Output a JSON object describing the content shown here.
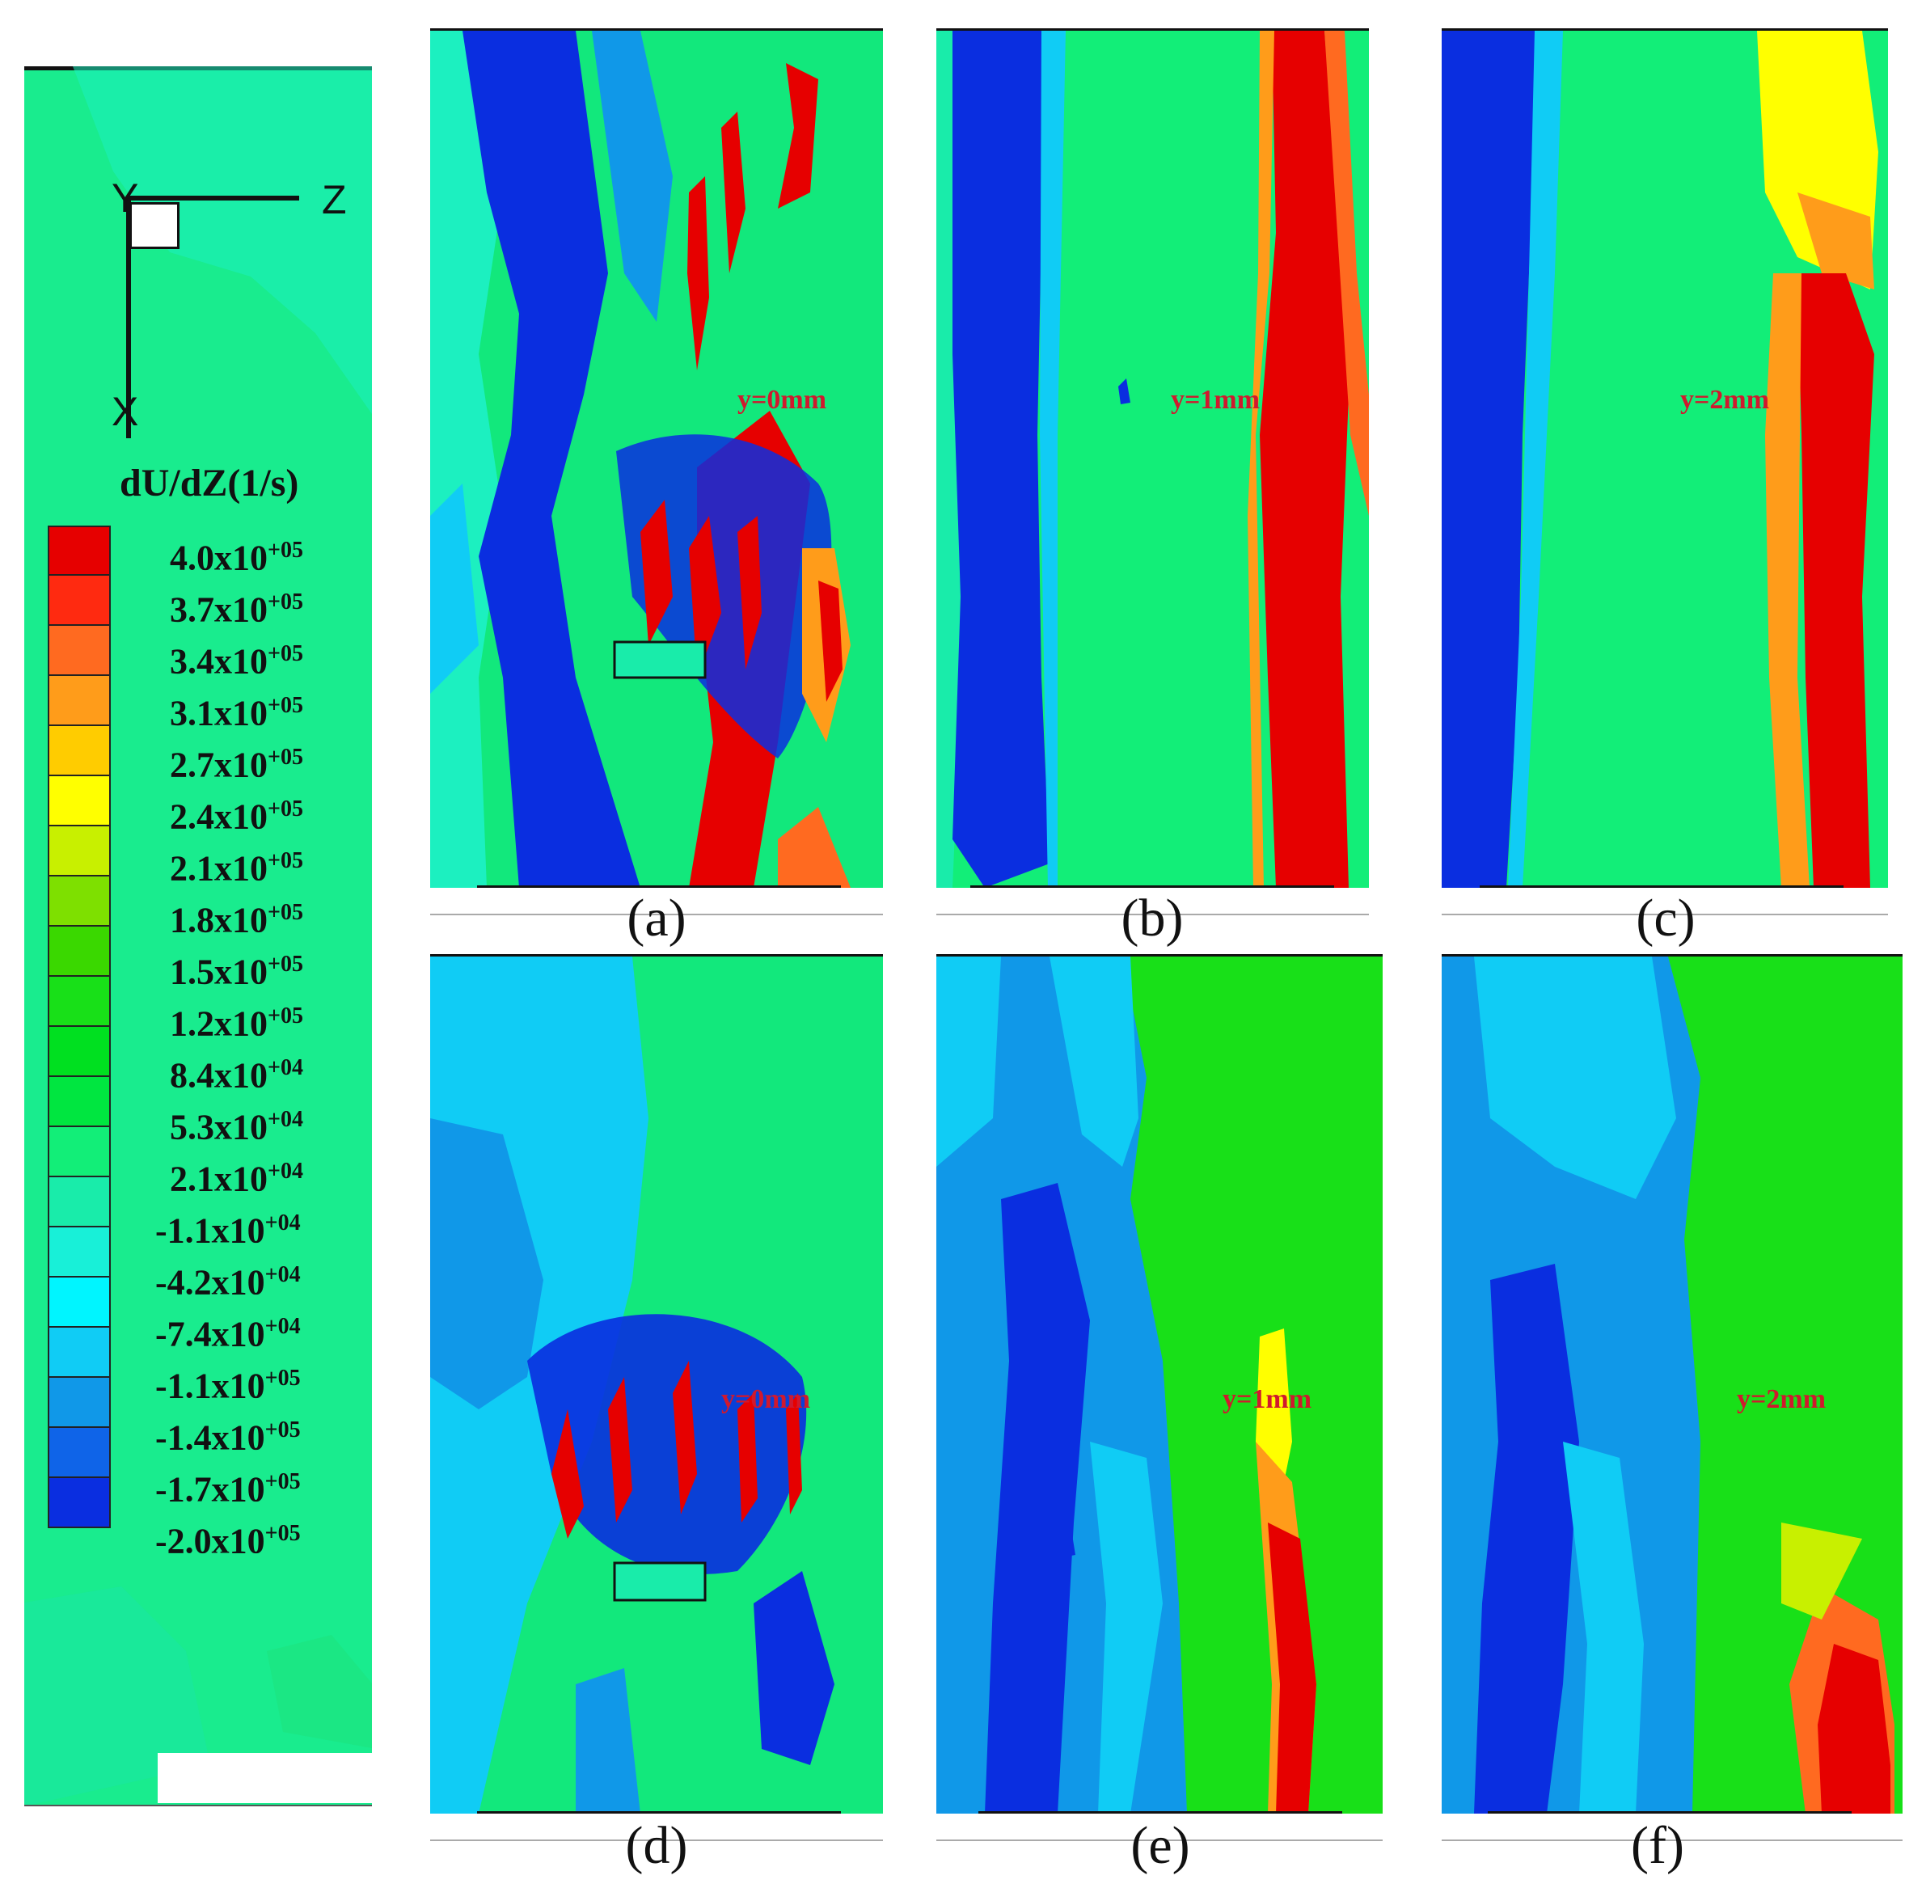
{
  "axes": {
    "y_label": "Y",
    "z_label": "Z",
    "x_label": "X"
  },
  "colorbar": {
    "title": "dU/dZ(1/s)",
    "levels": [
      {
        "label": "4.0x10+05",
        "base": "4.0x10",
        "exp": "+05",
        "color": "#e60000"
      },
      {
        "label": "3.7x10+05",
        "base": "3.7x10",
        "exp": "+05",
        "color": "#ff2a10"
      },
      {
        "label": "3.4x10+05",
        "base": "3.4x10",
        "exp": "+05",
        "color": "#ff6a20"
      },
      {
        "label": "3.1x10+05",
        "base": "3.1x10",
        "exp": "+05",
        "color": "#ff9c1a"
      },
      {
        "label": "2.7x10+05",
        "base": "2.7x10",
        "exp": "+05",
        "color": "#ffcc00"
      },
      {
        "label": "2.4x10+05",
        "base": "2.4x10",
        "exp": "+05",
        "color": "#ffff00"
      },
      {
        "label": "2.1x10+05",
        "base": "2.1x10",
        "exp": "+05",
        "color": "#c8f000"
      },
      {
        "label": "1.8x10+05",
        "base": "1.8x10",
        "exp": "+05",
        "color": "#7ee000"
      },
      {
        "label": "1.5x10+05",
        "base": "1.5x10",
        "exp": "+05",
        "color": "#3ad800"
      },
      {
        "label": "1.2x10+05",
        "base": "1.2x10",
        "exp": "+05",
        "color": "#18e018"
      },
      {
        "label": "8.4x10+04",
        "base": "8.4x10",
        "exp": "+04",
        "color": "#00e020"
      },
      {
        "label": "5.3x10+04",
        "base": "5.3x10",
        "exp": "+04",
        "color": "#00e640"
      },
      {
        "label": "2.1x10+04",
        "base": "2.1x10",
        "exp": "+04",
        "color": "#12ee78"
      },
      {
        "label": "-1.1x10+04",
        "base": "-1.1x10",
        "exp": "+04",
        "color": "#19ecaa"
      },
      {
        "label": "-4.2x10+04",
        "base": "-4.2x10",
        "exp": "+04",
        "color": "#18f0d8"
      },
      {
        "label": "-7.4x10+04",
        "base": "-7.4x10",
        "exp": "+04",
        "color": "#00f5ff"
      },
      {
        "label": "-1.1x10+05",
        "base": "-1.1x10",
        "exp": "+05",
        "color": "#10ccf5"
      },
      {
        "label": "-1.4x10+05",
        "base": "-1.4x10",
        "exp": "+05",
        "color": "#1098e8"
      },
      {
        "label": "-1.7x10+05",
        "base": "-1.7x10",
        "exp": "+05",
        "color": "#0f64e8"
      },
      {
        "label": "-2.0x10+05",
        "base": "-2.0x10",
        "exp": "+05",
        "color": "#0a2ee0"
      }
    ]
  },
  "panels": [
    {
      "id": "a",
      "caption": "(a)",
      "position_label": "y=0mm"
    },
    {
      "id": "b",
      "caption": "(b)",
      "position_label": "y=1mm"
    },
    {
      "id": "c",
      "caption": "(c)",
      "position_label": "y=2mm"
    },
    {
      "id": "d",
      "caption": "(d)",
      "position_label": "y=0mm"
    },
    {
      "id": "e",
      "caption": "(e)",
      "position_label": "y=1mm"
    },
    {
      "id": "f",
      "caption": "(f)",
      "position_label": "y=2mm"
    }
  ]
}
